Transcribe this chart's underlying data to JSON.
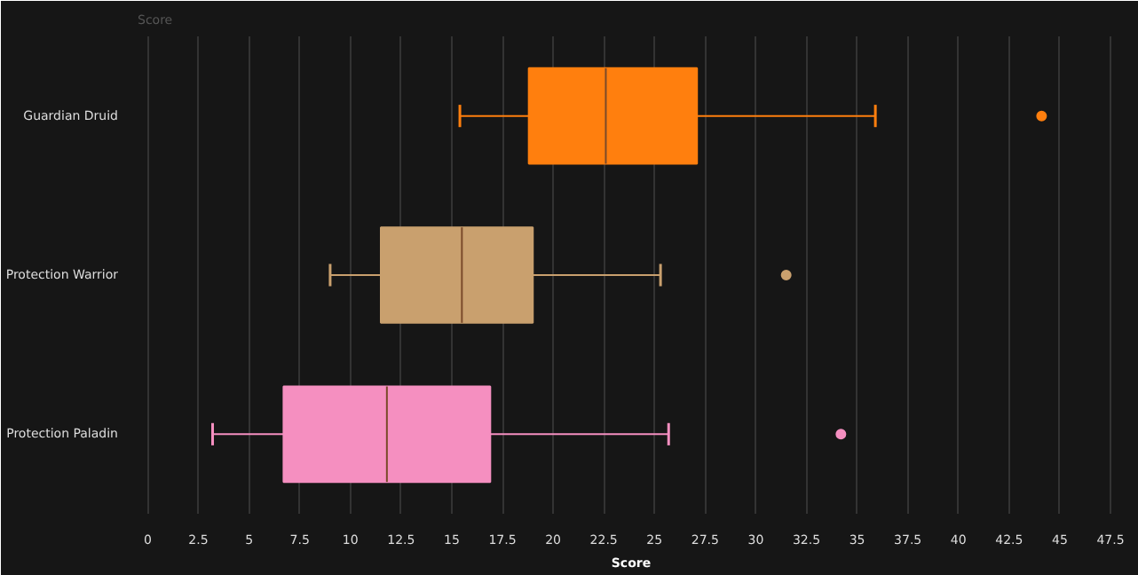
{
  "chart_data": {
    "type": "box",
    "title": "Score",
    "xlabel": "Score",
    "orientation": "horizontal",
    "categories": [
      "Guardian Druid",
      "Protection Warrior",
      "Protection Paladin"
    ],
    "series": [
      {
        "color": "#ff7f0e",
        "boxes": [
          {
            "low": 15.4,
            "q1": 18.8,
            "median": 22.6,
            "q3": 27.1,
            "high": 35.9,
            "outliers": [
              44.1
            ]
          },
          null,
          null
        ]
      },
      {
        "color": "#c9a06e",
        "boxes": [
          null,
          {
            "low": 9.0,
            "q1": 11.5,
            "median": 15.5,
            "q3": 19.0,
            "high": 25.3,
            "outliers": [
              31.5
            ]
          },
          null
        ]
      },
      {
        "color": "#f58fc0",
        "boxes": [
          null,
          null,
          {
            "low": 3.2,
            "q1": 6.7,
            "median": 11.8,
            "q3": 16.9,
            "high": 25.7,
            "outliers": [
              34.2
            ]
          }
        ]
      }
    ],
    "xlim": [
      -0.5,
      48.2
    ],
    "xticks": [
      0,
      2.5,
      5,
      7.5,
      10,
      12.5,
      15,
      17.5,
      20,
      22.5,
      25,
      27.5,
      30,
      32.5,
      35,
      37.5,
      40,
      42.5,
      45,
      47.5
    ],
    "grid": "x"
  }
}
